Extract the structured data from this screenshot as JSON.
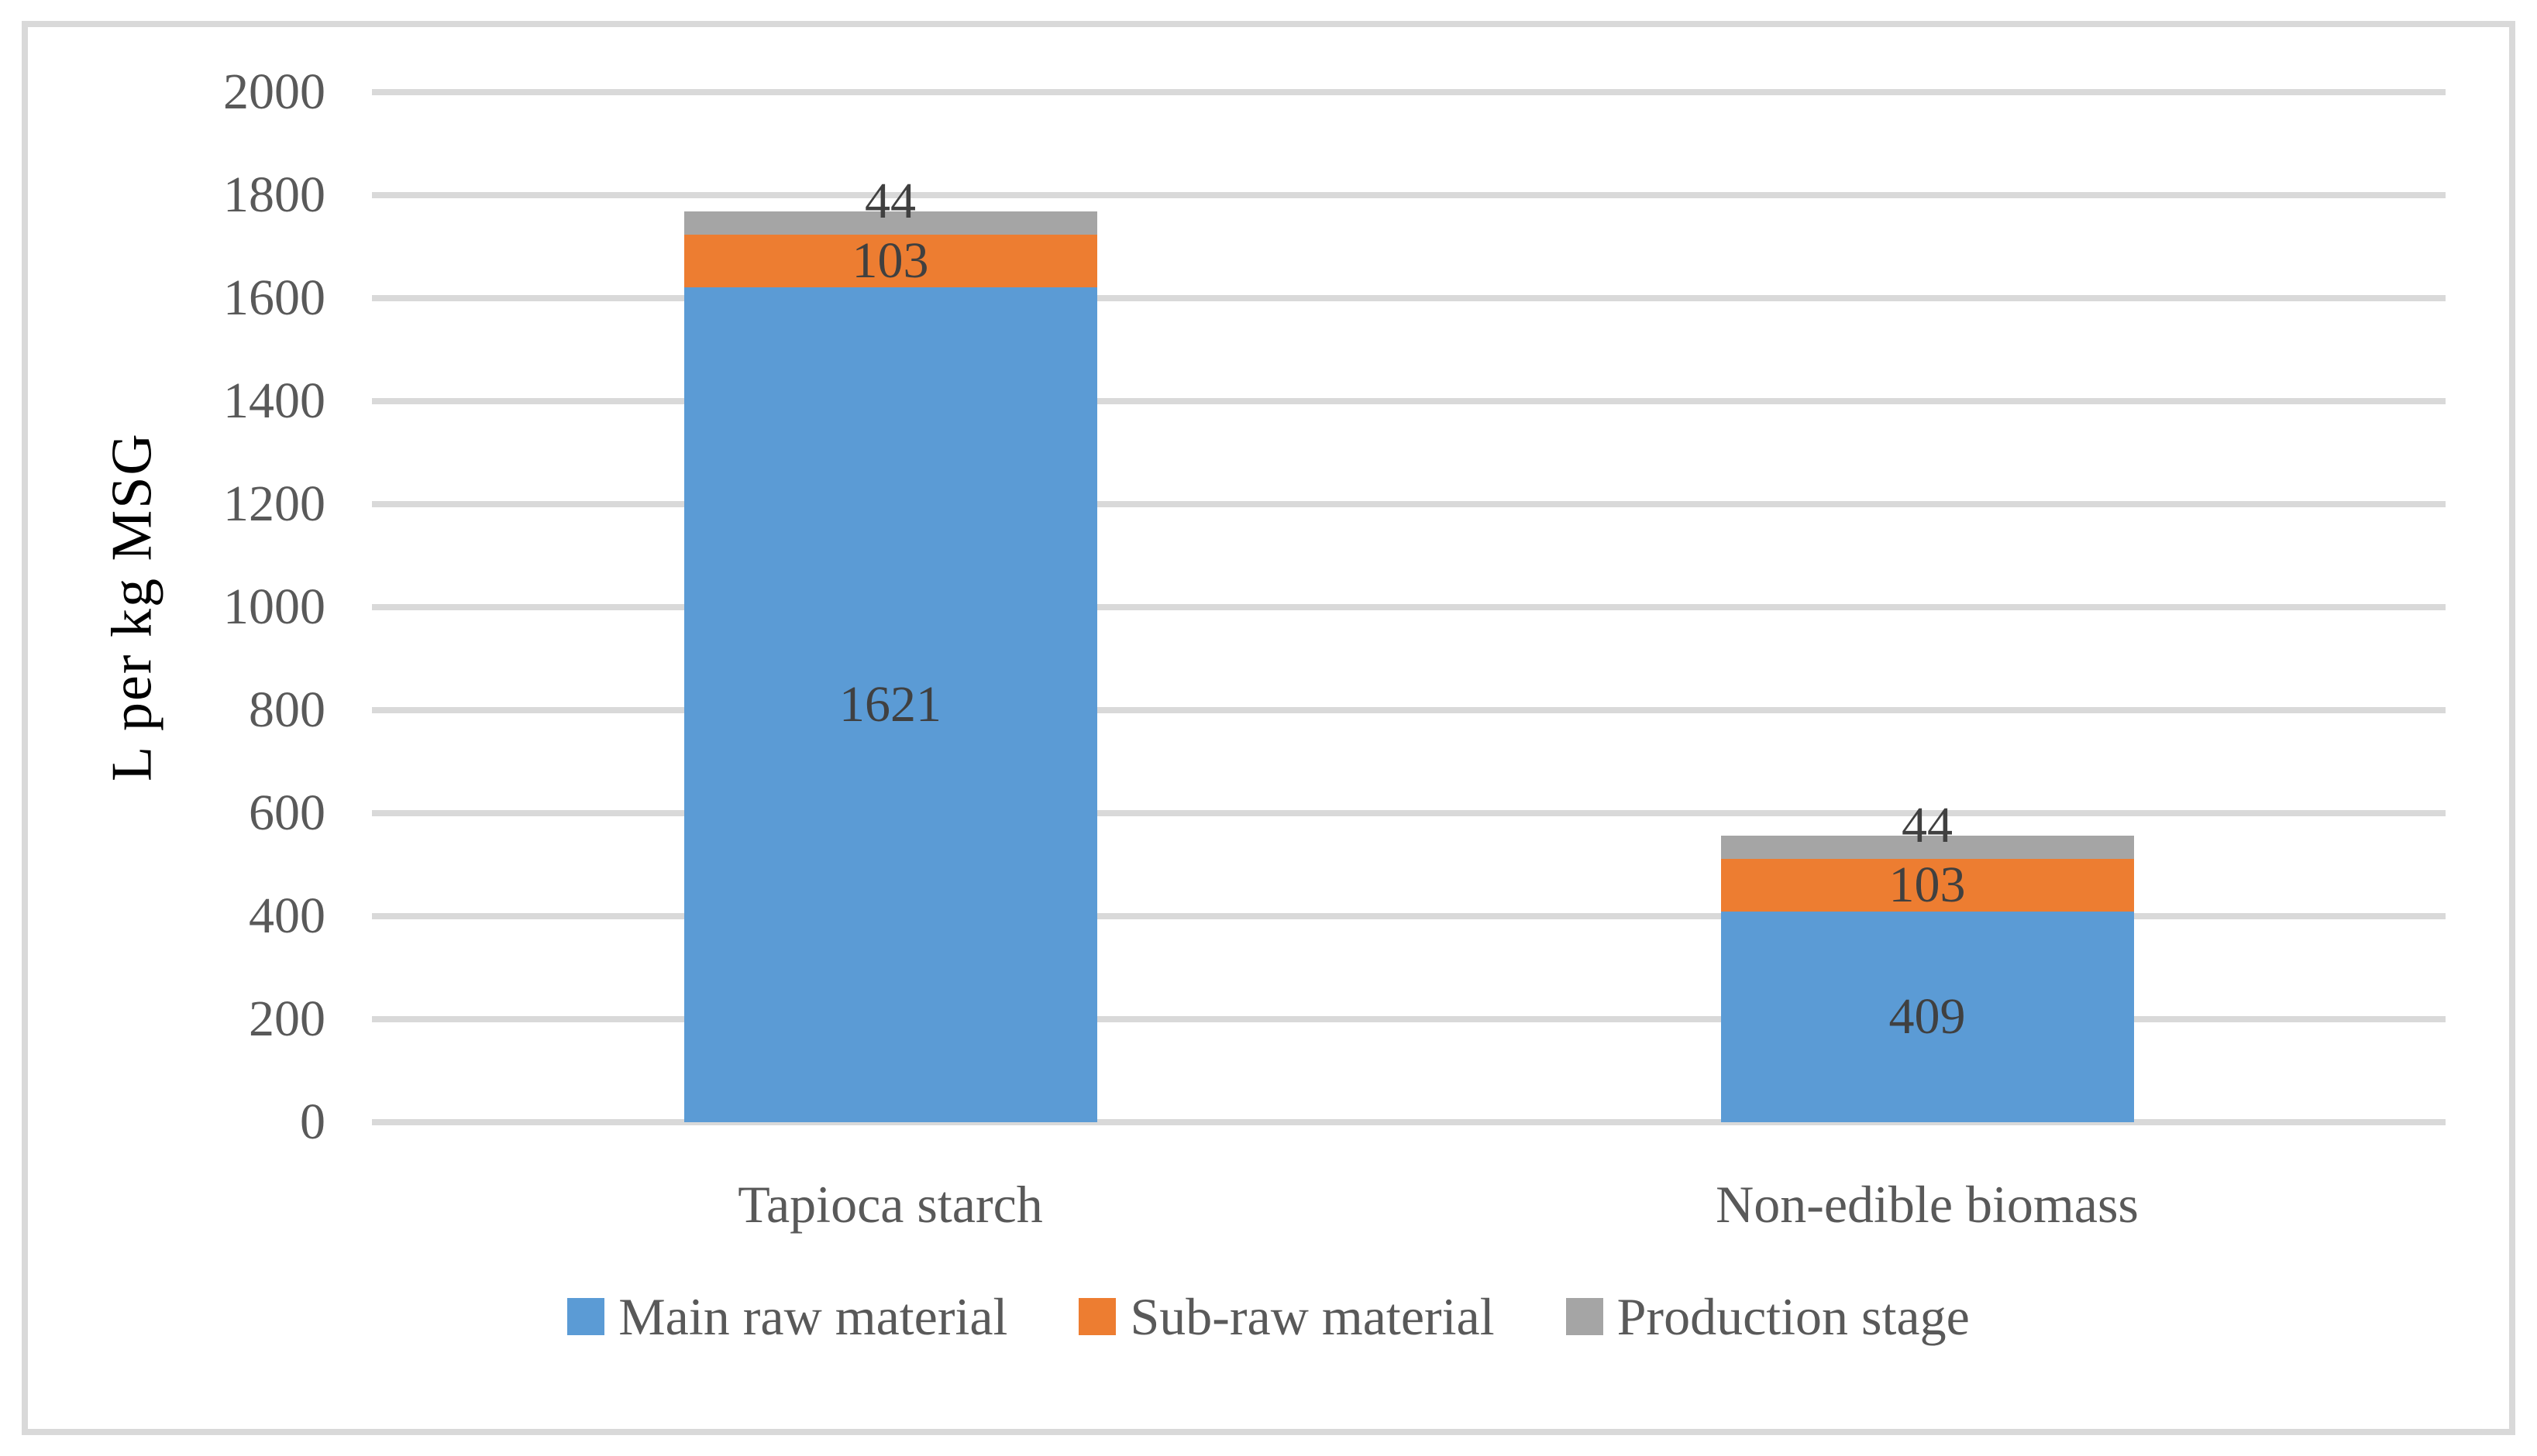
{
  "chart_data": {
    "type": "bar",
    "stacked": true,
    "categories": [
      "Tapioca starch",
      "Non-edible biomass"
    ],
    "series": [
      {
        "name": "Main raw material",
        "color": "#5B9BD5",
        "values": [
          1621,
          409
        ]
      },
      {
        "name": "Sub-raw material",
        "color": "#ED7D31",
        "values": [
          103,
          103
        ]
      },
      {
        "name": "Production stage",
        "color": "#A5A5A5",
        "values": [
          44,
          44
        ]
      }
    ],
    "data_labels": [
      [
        1621,
        103,
        44
      ],
      [
        409,
        103,
        44
      ]
    ],
    "ylabel": "L per kg MSG",
    "xlabel": "",
    "title": "",
    "ylim": [
      0,
      2000
    ],
    "yticks": [
      "0",
      "200",
      "400",
      "600",
      "800",
      "1000",
      "1200",
      "1400",
      "1600",
      "1800",
      "2000"
    ],
    "grid": true,
    "legend_position": "bottom"
  },
  "colors": {
    "gridline": "#D9D9D9",
    "frame_border": "#D9D9D9",
    "axis_text": "#595959",
    "data_label_text": "#404040",
    "background": "#FFFFFF"
  }
}
